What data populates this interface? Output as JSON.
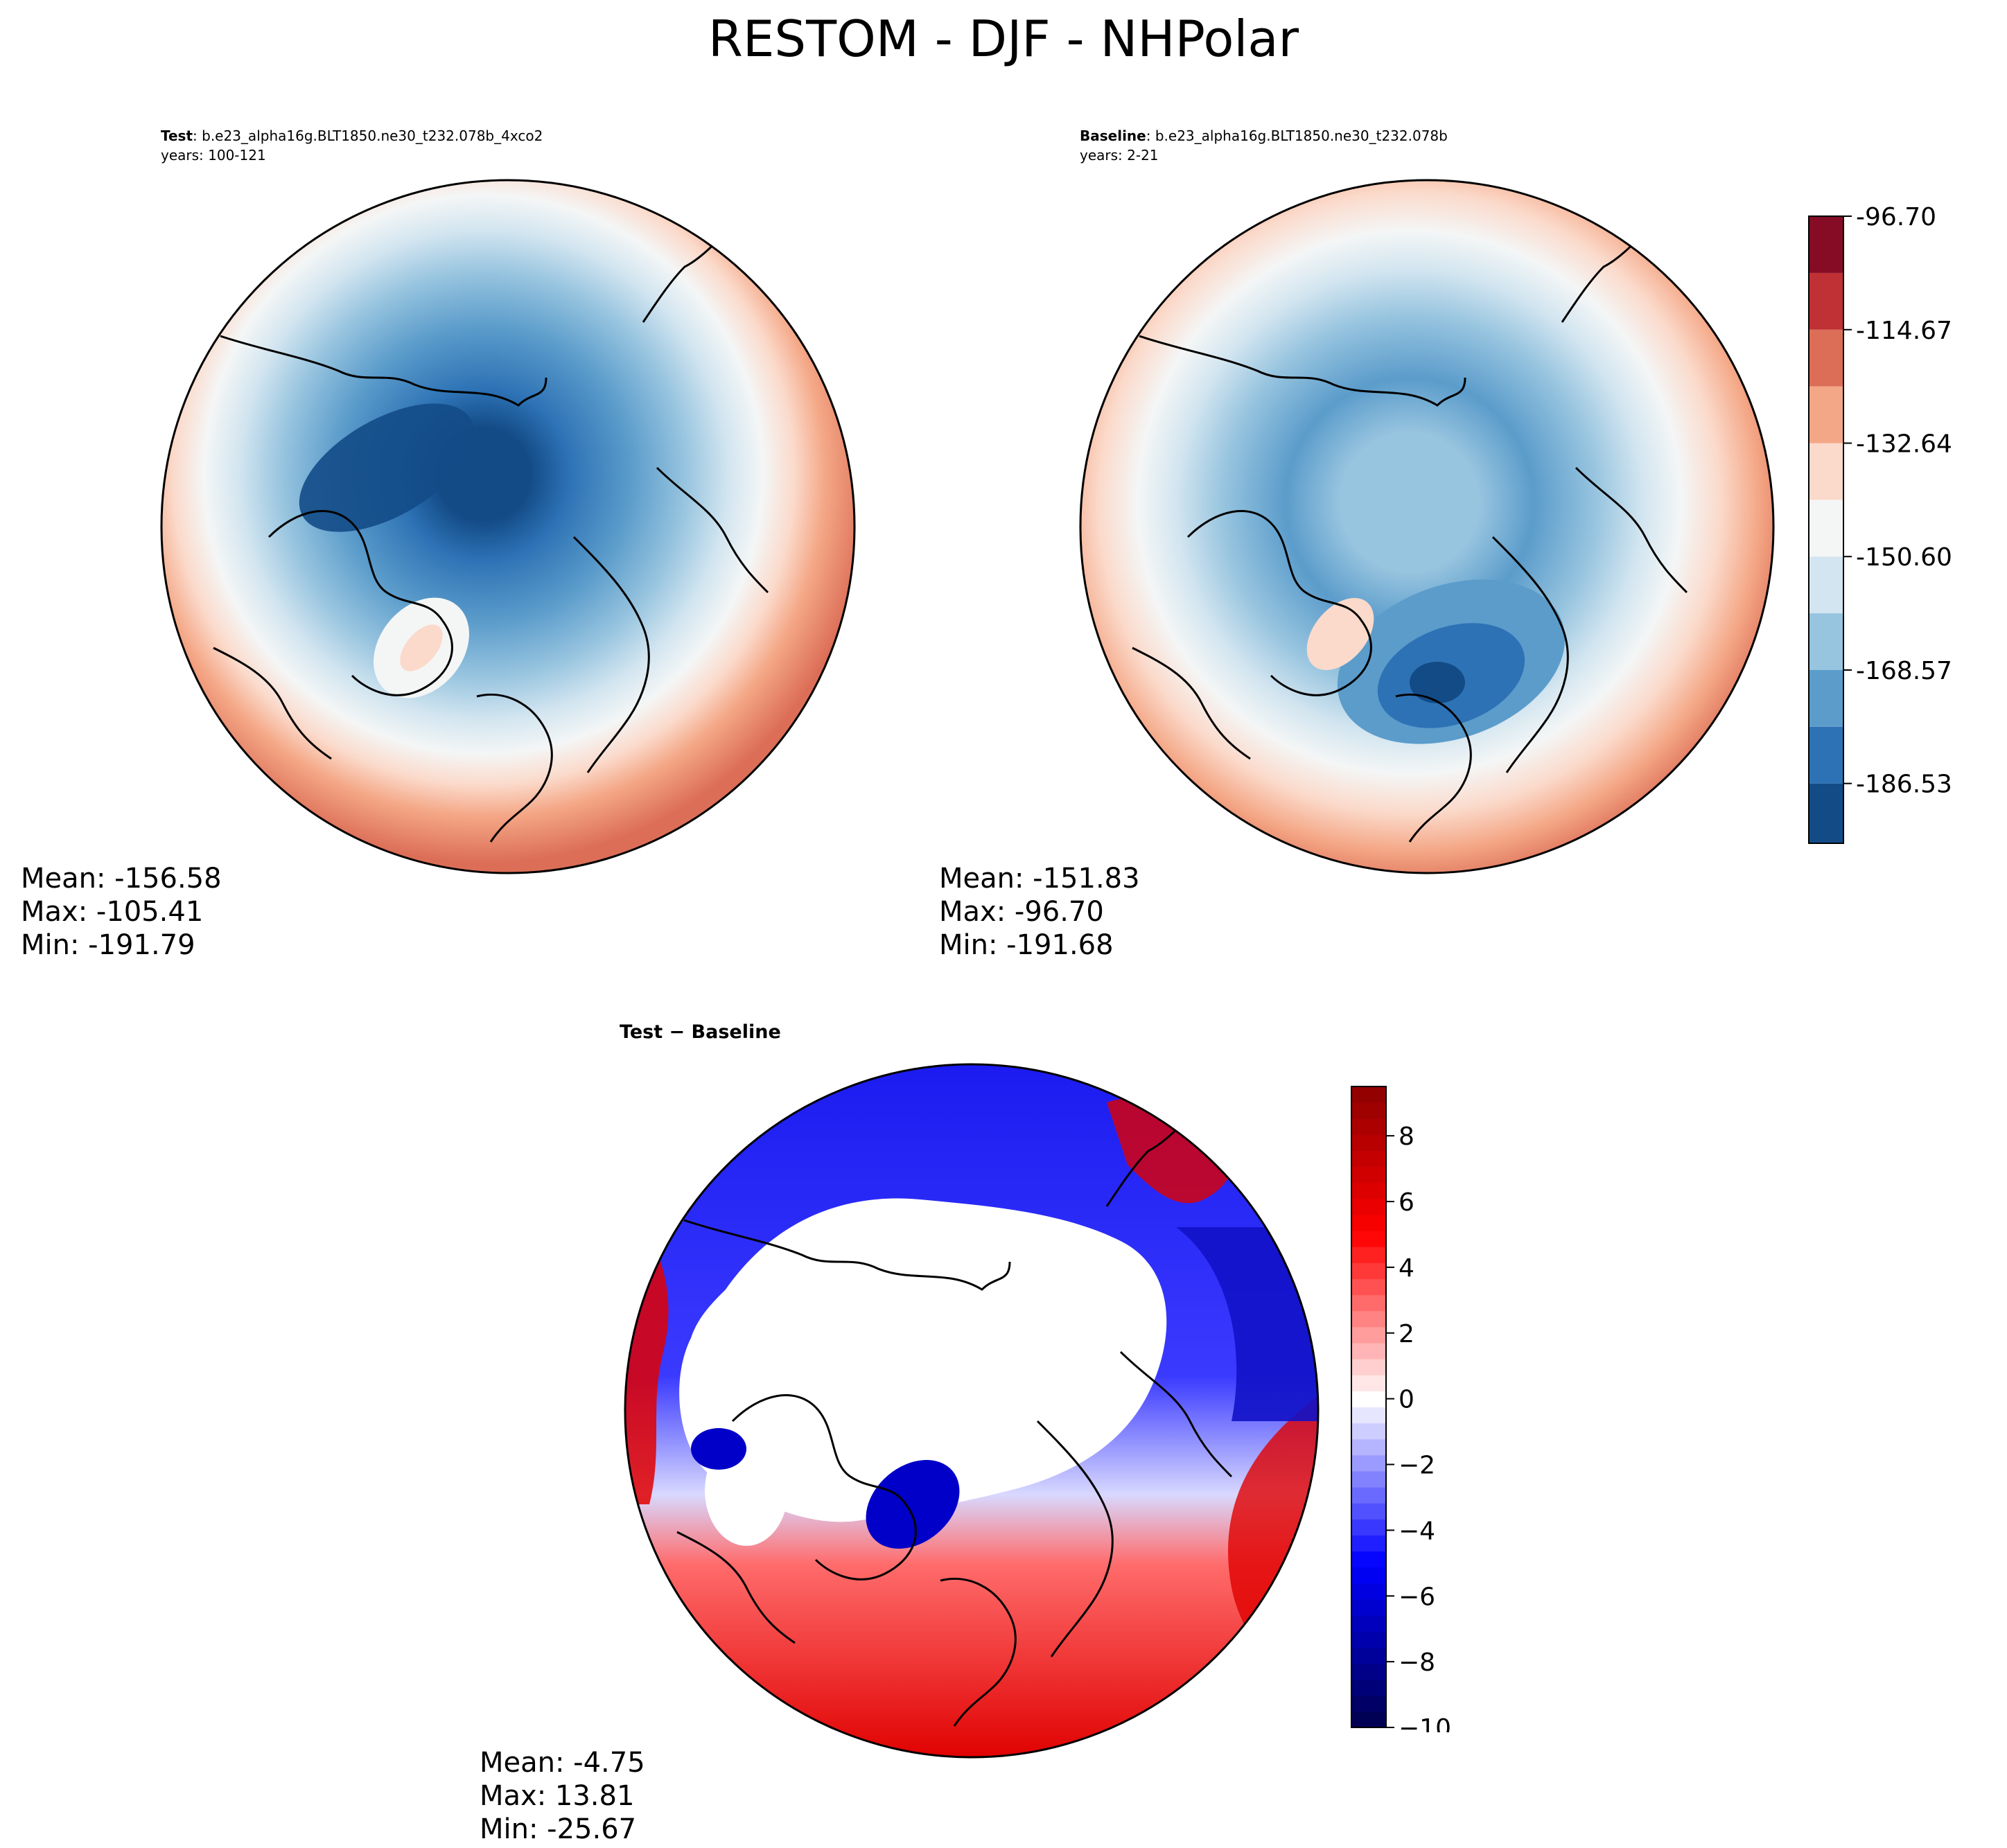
{
  "figure": {
    "title": "RESTOM - DJF - NHPolar"
  },
  "chart_data": [
    {
      "type": "heatmap",
      "projection": "north-polar-stereographic",
      "label": "Test",
      "case": "b.e23_alpha16g.BLT1850.ne30_t232.078b_4xco2",
      "years": "years: 100-121",
      "stats": {
        "mean": "Mean: -156.58",
        "max": "Max: -105.41",
        "min": "Min: -191.79"
      },
      "levels": [
        -196.0,
        -186.53,
        -177.55,
        -168.57,
        -159.58,
        -150.6,
        -141.62,
        -132.64,
        -123.65,
        -114.67,
        -105.69,
        -96.7
      ],
      "colors": [
        "#134b87",
        "#2d72b5",
        "#5b9ccb",
        "#97c4df",
        "#d2e5f0",
        "#f4f6f6",
        "#fbdacb",
        "#f4a786",
        "#dc6e57",
        "#bf3135",
        "#860b24"
      ],
      "field_approx": {
        "pole": -184,
        "atlantic_min": -190,
        "greenland": -150,
        "tropics_edge": -128,
        "pacific_edge_max": -108
      }
    },
    {
      "type": "heatmap",
      "projection": "north-polar-stereographic",
      "label": "Baseline",
      "case": "b.e23_alpha16g.BLT1850.ne30_t232.078b",
      "years": "years: 2-21",
      "stats": {
        "mean": "Mean: -151.83",
        "max": "Max: -96.70",
        "min": "Min: -191.68"
      },
      "colorbar": {
        "ticks": [
          "-96.70",
          "-114.67",
          "-132.64",
          "-150.60",
          "-168.57",
          "-186.53"
        ],
        "tick_values": [
          -96.7,
          -114.67,
          -132.64,
          -150.6,
          -168.57,
          -186.53
        ],
        "range": [
          -196.0,
          -96.7
        ]
      }
    },
    {
      "type": "heatmap",
      "projection": "north-polar-stereographic",
      "label": "Test − Baseline",
      "stats": {
        "mean": "Mean: -4.75",
        "max": "Max: 13.81",
        "min": "Min: -25.67"
      },
      "colorbar": {
        "ticks": [
          "8",
          "6",
          "4",
          "2",
          "0",
          "−2",
          "−4",
          "−6",
          "−8",
          "−10"
        ],
        "tick_values": [
          8,
          6,
          4,
          2,
          0,
          -2,
          -4,
          -6,
          -8,
          -10
        ],
        "range": [
          -10,
          9.5
        ]
      },
      "field_approx": {
        "arctic_interior": "white (masked/near 0)",
        "north_pacific": -8,
        "north_atlantic": 7,
        "siberia": 6
      }
    }
  ]
}
